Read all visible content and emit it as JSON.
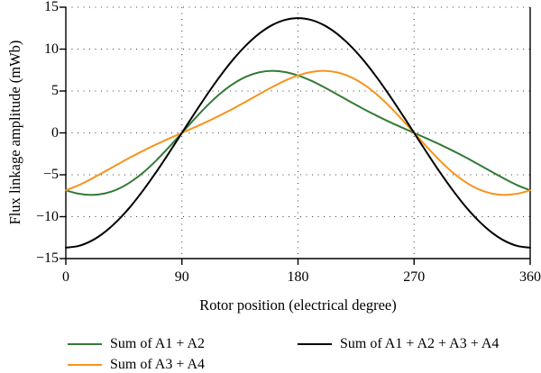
{
  "figure": {
    "y_axis": {
      "label": "Flux linkage amplitude (mWb)",
      "tick_labels": [
        "15",
        "10",
        "5",
        "0",
        "−5",
        "−10",
        "−15"
      ]
    },
    "x_axis": {
      "label": "Rotor position (electrical degree)",
      "tick_labels": [
        "0",
        "90",
        "180",
        "270",
        "360"
      ]
    },
    "legend": {
      "items": [
        {
          "label": "Sum of A1 + A2",
          "color": "#347a36"
        },
        {
          "label": "Sum of A3 + A4",
          "color": "#f7941d"
        },
        {
          "label": "Sum of A1 + A2 + A3 + A4",
          "color": "#000000"
        }
      ]
    },
    "colors": {
      "grid": "#3d3d3d",
      "axis": "#000000",
      "background": "#ffffff"
    }
  },
  "chart_data": {
    "type": "line",
    "title": "",
    "xlabel": "Rotor position (electrical degree)",
    "ylabel": "Flux linkage amplitude (mWb)",
    "xlim": [
      0,
      360
    ],
    "ylim": [
      -15,
      15
    ],
    "x_ticks": [
      0,
      90,
      180,
      270,
      360
    ],
    "y_ticks": [
      -15,
      -10,
      -5,
      0,
      5,
      10,
      15
    ],
    "grid": "dotted",
    "legend_position": "below",
    "x": [
      0,
      10,
      20,
      30,
      40,
      50,
      60,
      70,
      80,
      90,
      100,
      110,
      120,
      130,
      140,
      150,
      160,
      170,
      180,
      190,
      200,
      210,
      220,
      230,
      240,
      250,
      260,
      270,
      280,
      290,
      300,
      310,
      320,
      330,
      340,
      350,
      360
    ],
    "series": [
      {
        "name": "Sum of A1 + A2",
        "color": "#347a36",
        "values": [
          -6.85,
          -7.26,
          -7.4,
          -7.23,
          -6.73,
          -5.88,
          -4.73,
          -3.31,
          -1.7,
          0,
          1.7,
          3.31,
          4.73,
          5.88,
          6.73,
          7.23,
          7.4,
          7.26,
          6.85,
          6.24,
          5.47,
          4.63,
          3.77,
          2.92,
          2.13,
          1.38,
          0.68,
          0,
          -0.68,
          -1.38,
          -2.13,
          -2.92,
          -3.77,
          -4.63,
          -5.47,
          -6.24,
          -6.85
        ]
      },
      {
        "name": "Sum of A3 + A4",
        "color": "#f7941d",
        "values": [
          -6.85,
          -6.24,
          -5.47,
          -4.63,
          -3.77,
          -2.92,
          -2.13,
          -1.38,
          -0.68,
          0,
          0.68,
          1.38,
          2.13,
          2.92,
          3.77,
          4.63,
          5.47,
          6.24,
          6.85,
          7.26,
          7.4,
          7.23,
          6.73,
          5.88,
          4.73,
          3.31,
          1.7,
          0,
          -1.7,
          -3.31,
          -4.73,
          -5.88,
          -6.73,
          -7.23,
          -7.4,
          -7.26,
          -6.85
        ]
      },
      {
        "name": "Sum of A1 + A2 + A3 + A4",
        "color": "#000000",
        "values": [
          -13.7,
          -13.49,
          -12.87,
          -11.86,
          -10.49,
          -8.81,
          -6.85,
          -4.69,
          -2.38,
          0,
          2.38,
          4.69,
          6.85,
          8.81,
          10.49,
          11.86,
          12.87,
          13.49,
          13.7,
          13.49,
          12.87,
          11.86,
          10.49,
          8.81,
          6.85,
          4.69,
          2.38,
          0,
          -2.38,
          -4.69,
          -6.85,
          -8.81,
          -10.49,
          -11.86,
          -12.87,
          -13.49,
          -13.7
        ]
      }
    ]
  }
}
